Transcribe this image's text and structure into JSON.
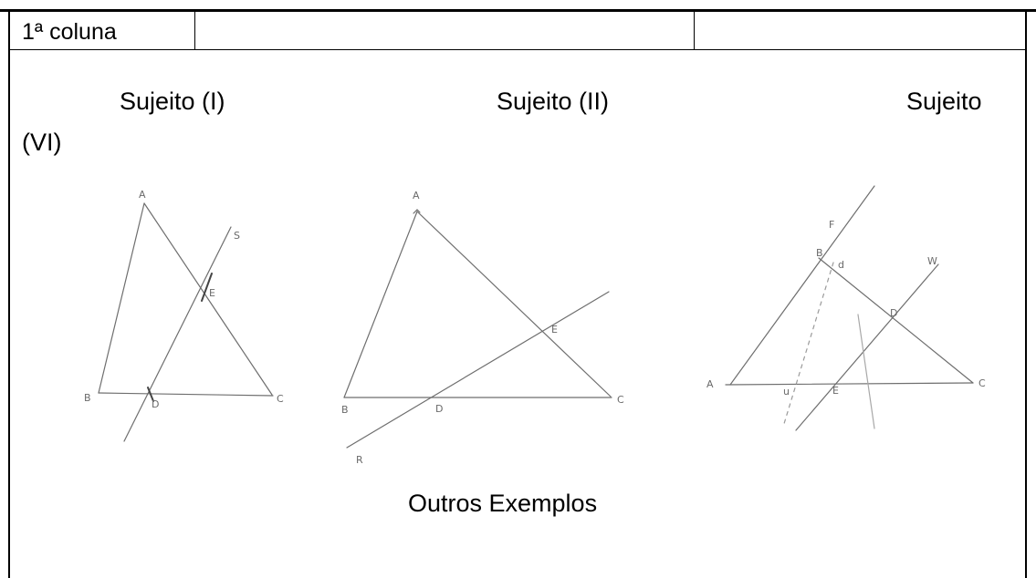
{
  "table_header": {
    "col1": "1ª coluna",
    "col2": "",
    "col3": ""
  },
  "subjects": {
    "first": "Sujeito (I)",
    "second": "Sujeito (II)",
    "third_part1": "Sujeito",
    "third_part2": "(VI)"
  },
  "figure1_points": [
    "A",
    "B",
    "C",
    "D",
    "E",
    "S"
  ],
  "figure2_points": [
    "A",
    "B",
    "C",
    "D",
    "E",
    "R"
  ],
  "figure3_points": [
    "A",
    "B",
    "C",
    "D",
    "E",
    "F",
    "W",
    "d",
    "u"
  ],
  "footer_caption": "Outros Exemplos"
}
